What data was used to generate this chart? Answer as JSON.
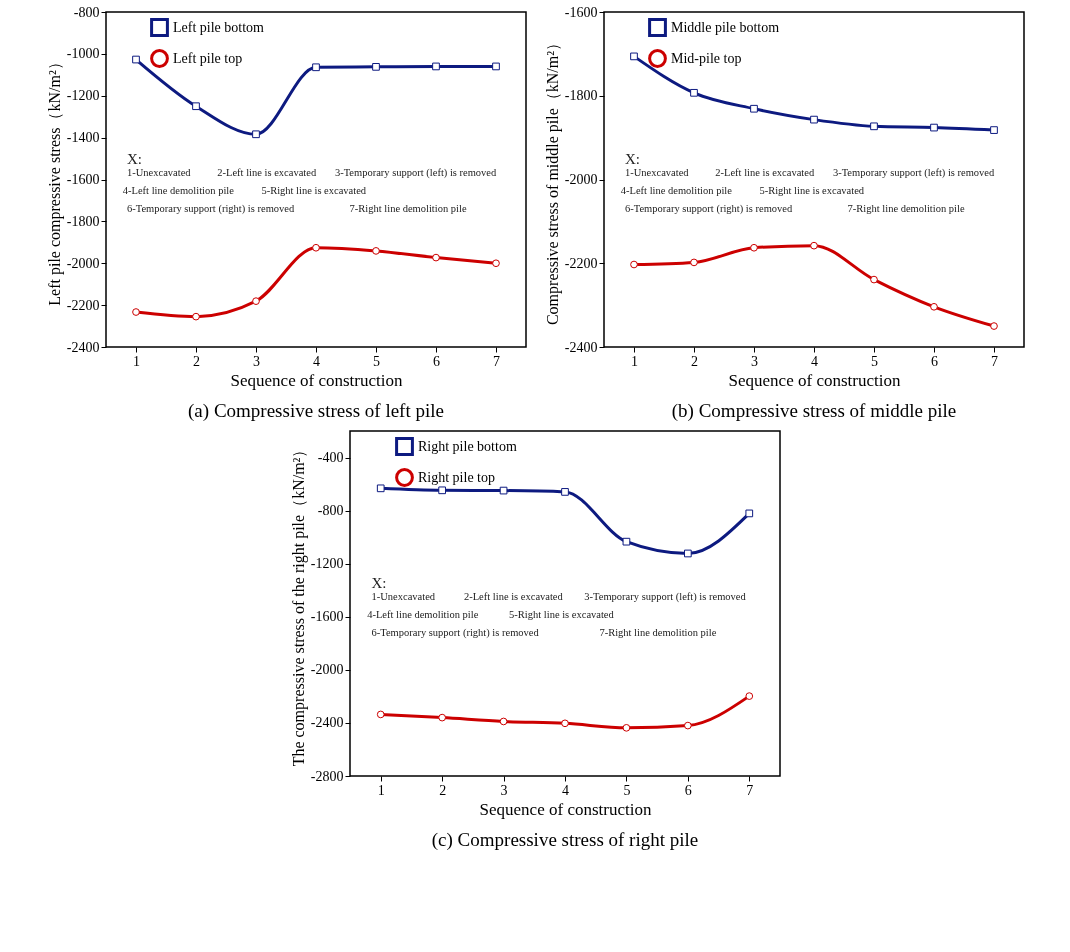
{
  "chart_data": [
    {
      "type": "line",
      "title": "(a) Compressive stress of left pile",
      "xlabel": "Sequence of construction",
      "ylabel": "Left pile compressive stress（kN/m²）",
      "x": [
        1,
        2,
        3,
        4,
        5,
        6,
        7
      ],
      "xlim": [
        0.5,
        7.5
      ],
      "xticks": [
        1,
        2,
        3,
        4,
        5,
        6,
        7
      ],
      "ylim": [
        -2400,
        -800
      ],
      "yticks": [
        -2400,
        -2200,
        -2000,
        -1800,
        -1600,
        -1400,
        -1200,
        -1000,
        -800
      ],
      "grid": false,
      "legend": "top left",
      "line_style": "solid",
      "series": [
        {
          "name": "Left pile bottom",
          "color": "#0d1a80",
          "marker": "square",
          "values": [
            -1027,
            -1250,
            -1384,
            -1064,
            -1062,
            -1060,
            -1060
          ]
        },
        {
          "name": "Left pile top",
          "color": "#cc0000",
          "marker": "circle",
          "values": [
            -2233,
            -2255,
            -2181,
            -1926,
            -1941,
            -1973,
            -2000
          ]
        }
      ],
      "annotations": [
        "X:",
        "1-Unexcavated",
        "2-Left line is excavated",
        "3-Temporary support (left) is removed",
        "4-Left line demolition pile",
        "5-Right line is excavated",
        "6-Temporary support (right) is removed",
        "7-Right line demolition pile"
      ]
    },
    {
      "type": "line",
      "title": "(b) Compressive stress of middle pile",
      "xlabel": "Sequence of construction",
      "ylabel": "Compressive stress of middle pile（kN/m²）",
      "x": [
        1,
        2,
        3,
        4,
        5,
        6,
        7
      ],
      "xlim": [
        0.5,
        7.5
      ],
      "xticks": [
        1,
        2,
        3,
        4,
        5,
        6,
        7
      ],
      "ylim": [
        -2400,
        -1600
      ],
      "yticks": [
        -2400,
        -2200,
        -2000,
        -1800,
        -1600
      ],
      "grid": false,
      "legend": "top left",
      "line_style": "solid",
      "series": [
        {
          "name": "Middle pile bottom",
          "color": "#0d1a80",
          "marker": "square",
          "values": [
            -1706,
            -1793,
            -1831,
            -1857,
            -1873,
            -1876,
            -1882
          ]
        },
        {
          "name": "Mid-pile top",
          "color": "#cc0000",
          "marker": "circle",
          "values": [
            -2203,
            -2198,
            -2163,
            -2158,
            -2239,
            -2304,
            -2350
          ]
        }
      ],
      "annotations": [
        "X:",
        "1-Unexcavated",
        "2-Left line is excavated",
        "3-Temporary support (left) is removed",
        "4-Left line demolition pile",
        "5-Right line is excavated",
        "6-Temporary support (right) is removed",
        "7-Right line demolition pile"
      ]
    },
    {
      "type": "line",
      "title": "(c) Compressive stress of right pile",
      "xlabel": "Sequence of construction",
      "ylabel": "The compressive stress of the right pile（kN/m²）",
      "x": [
        1,
        2,
        3,
        4,
        5,
        6,
        7
      ],
      "xlim": [
        0.5,
        7.5
      ],
      "xticks": [
        1,
        2,
        3,
        4,
        5,
        6,
        7
      ],
      "ylim": [
        -2800,
        -200
      ],
      "yticks": [
        -2800,
        -2400,
        -2000,
        -1600,
        -1200,
        -800,
        -400
      ],
      "grid": false,
      "legend": "top left",
      "line_style": "solid",
      "series": [
        {
          "name": "Right pile bottom",
          "color": "#0d1a80",
          "marker": "square",
          "values": [
            -632,
            -647,
            -649,
            -659,
            -1034,
            -1123,
            -821
          ]
        },
        {
          "name": "Right pile top",
          "color": "#cc0000",
          "marker": "circle",
          "values": [
            -2336,
            -2360,
            -2389,
            -2403,
            -2437,
            -2420,
            -2198
          ]
        }
      ],
      "annotations": [
        "X:",
        "1-Unexcavated",
        "2-Left line is excavated",
        "3-Temporary support (left) is removed",
        "4-Left line demolition pile",
        "5-Right line is excavated",
        "6-Temporary support (right) is removed",
        "7-Right line demolition pile"
      ]
    }
  ]
}
